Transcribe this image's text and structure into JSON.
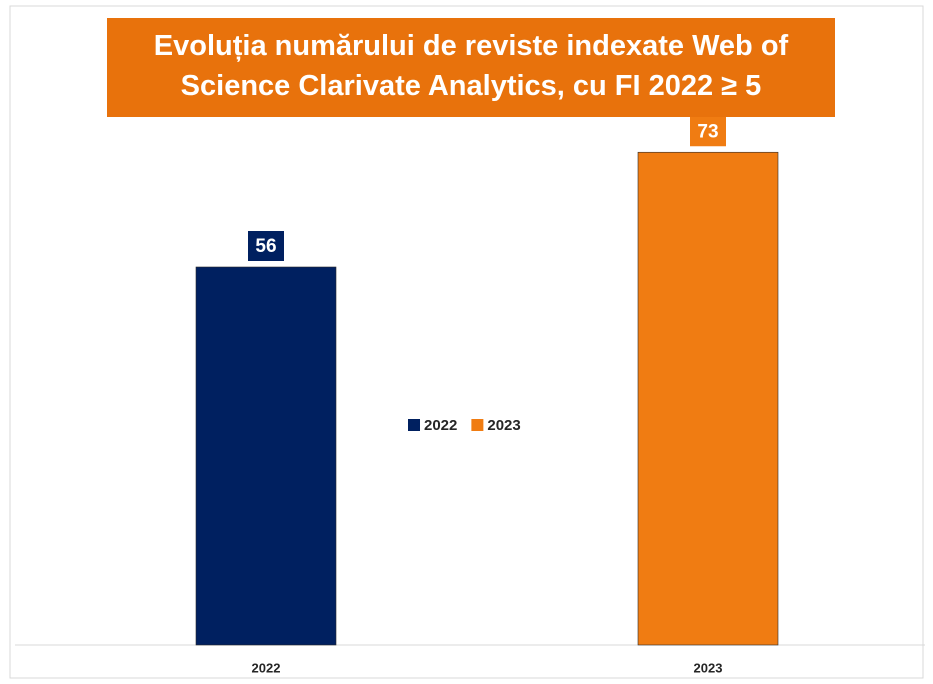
{
  "chart_data": {
    "type": "bar",
    "title": "Evoluția numărului de reviste indexate Web of Science Clarivate Analytics, cu FI 2022 ≥ 5",
    "categories": [
      "2022",
      "2023"
    ],
    "series": [
      {
        "name": "2022",
        "color": "#002060",
        "values": [
          56,
          null
        ]
      },
      {
        "name": "2023",
        "color": "#f07c12",
        "values": [
          null,
          73
        ]
      }
    ],
    "ylim": [
      0,
      80
    ],
    "legend": "center"
  }
}
